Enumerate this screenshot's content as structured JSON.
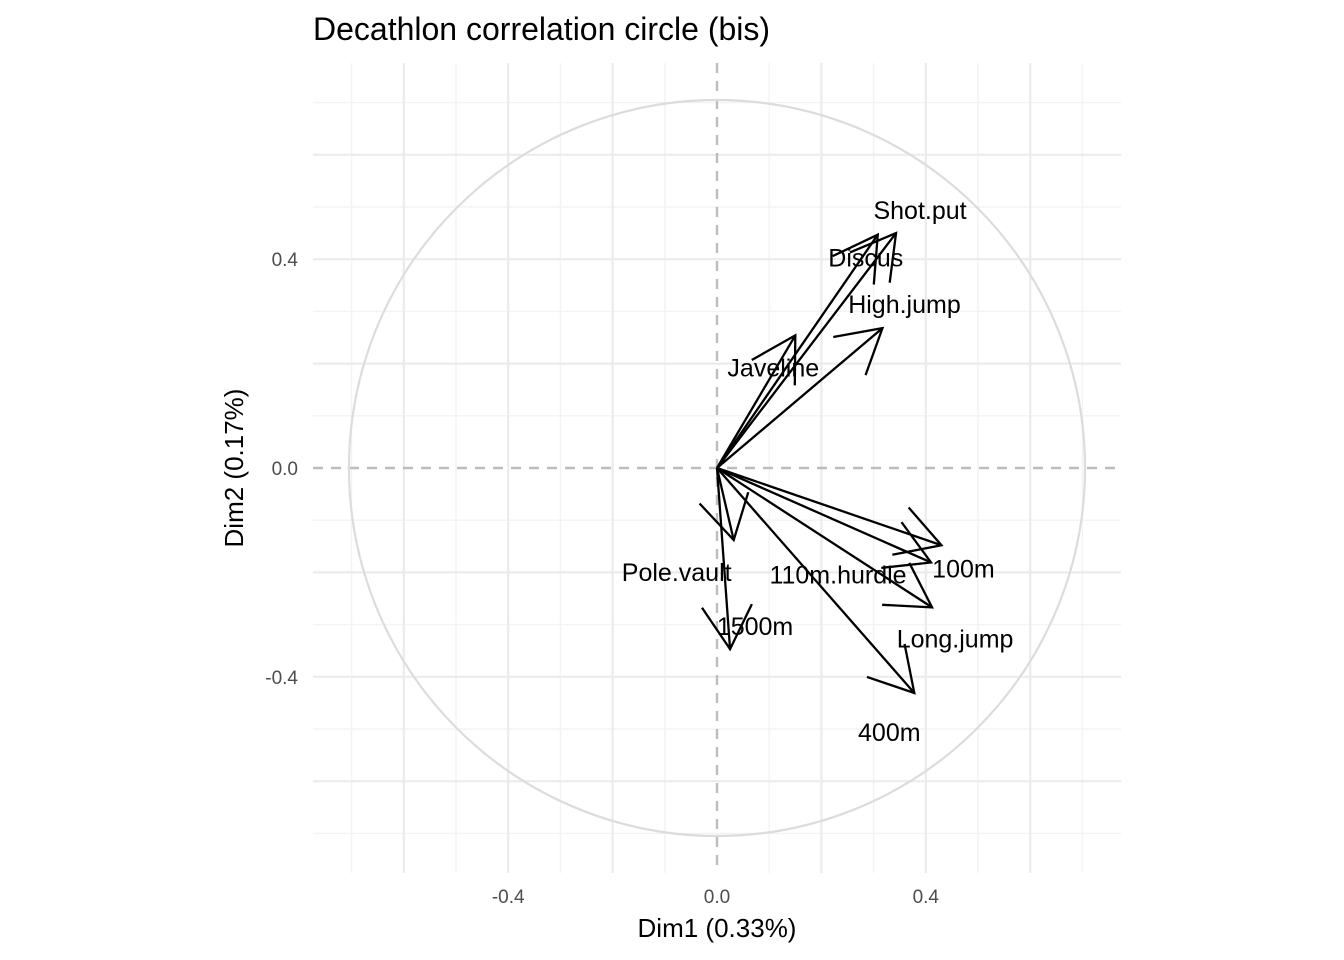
{
  "chart_data": {
    "type": "scatter",
    "subtype": "correlation-circle",
    "title": "Decathlon correlation circle (bis)",
    "xlabel": "Dim1 (0.33%)",
    "ylabel": "Dim2 (0.17%)",
    "xlim": [
      -0.775,
      0.775
    ],
    "ylim": [
      -0.775,
      0.775
    ],
    "x_ticks": [
      -0.4,
      0.0,
      0.4
    ],
    "y_ticks": [
      -0.4,
      0.0,
      0.4
    ],
    "x_tick_labels": [
      "-0.4",
      "0.0",
      "0.4"
    ],
    "y_tick_labels": [
      "-0.4",
      "0.0",
      "0.4"
    ],
    "grid": true,
    "reference_lines": "dashed at x=0 and y=0",
    "circle_radius": 0.705,
    "variables": [
      {
        "name": "Shot.put",
        "x": 0.343,
        "y": 0.45
      },
      {
        "name": "Discus",
        "x": 0.308,
        "y": 0.447
      },
      {
        "name": "High.jump",
        "x": 0.317,
        "y": 0.268
      },
      {
        "name": "Javeline",
        "x": 0.15,
        "y": 0.254
      },
      {
        "name": "100m",
        "x": 0.43,
        "y": -0.148
      },
      {
        "name": "110m.hurdle",
        "x": 0.41,
        "y": -0.181
      },
      {
        "name": "Long.jump",
        "x": 0.412,
        "y": -0.267
      },
      {
        "name": "400m",
        "x": 0.378,
        "y": -0.431
      },
      {
        "name": "Pole.vault",
        "x": 0.032,
        "y": -0.138
      },
      {
        "name": "1500m",
        "x": 0.025,
        "y": -0.347
      }
    ]
  }
}
